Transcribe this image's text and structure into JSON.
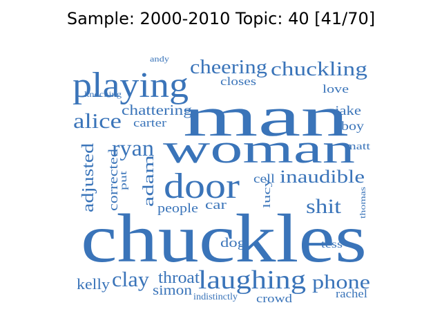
{
  "title": "Sample: 2000-2010 Topic: 40 [41/70]",
  "word_color": "#3a74b9",
  "words": [
    {
      "text": "andy"
    },
    {
      "text": "playing"
    },
    {
      "text": "knocking"
    },
    {
      "text": "cheering"
    },
    {
      "text": "chuckling"
    },
    {
      "text": "closes"
    },
    {
      "text": "love"
    },
    {
      "text": "man"
    },
    {
      "text": "alice"
    },
    {
      "text": "chattering"
    },
    {
      "text": "carter"
    },
    {
      "text": "jake"
    },
    {
      "text": "boy"
    },
    {
      "text": "woman"
    },
    {
      "text": "ryan"
    },
    {
      "text": "matt"
    },
    {
      "text": "adjusted"
    },
    {
      "text": "corrected"
    },
    {
      "text": "put"
    },
    {
      "text": "adam"
    },
    {
      "text": "door"
    },
    {
      "text": "cell"
    },
    {
      "text": "inaudible"
    },
    {
      "text": "lucy"
    },
    {
      "text": "thomas"
    },
    {
      "text": "people"
    },
    {
      "text": "car"
    },
    {
      "text": "shit"
    },
    {
      "text": "chuckles"
    },
    {
      "text": "dog"
    },
    {
      "text": "tess"
    },
    {
      "text": "kelly"
    },
    {
      "text": "clay"
    },
    {
      "text": "throat"
    },
    {
      "text": "simon"
    },
    {
      "text": "laughing"
    },
    {
      "text": "indistinctly"
    },
    {
      "text": "crowd"
    },
    {
      "text": "phone"
    },
    {
      "text": "rachel"
    }
  ]
}
